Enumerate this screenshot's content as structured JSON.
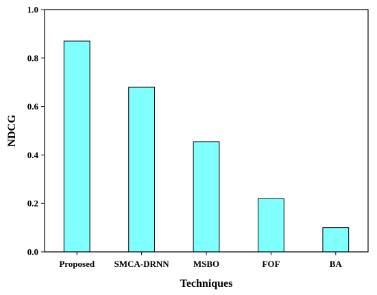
{
  "chart_data": {
    "type": "bar",
    "title": "",
    "xlabel": "Techniques",
    "ylabel": "NDCG",
    "categories": [
      "Proposed",
      "SMCA-DRNN",
      "MSBO",
      "FOF",
      "BA"
    ],
    "values": [
      0.87,
      0.68,
      0.455,
      0.22,
      0.1
    ],
    "ylim": [
      0,
      1.0
    ],
    "yticks": [
      "0.0",
      "0.2",
      "0.4",
      "0.6",
      "0.8",
      "1.0"
    ],
    "grid": false,
    "bar_color": "#80ffff"
  }
}
